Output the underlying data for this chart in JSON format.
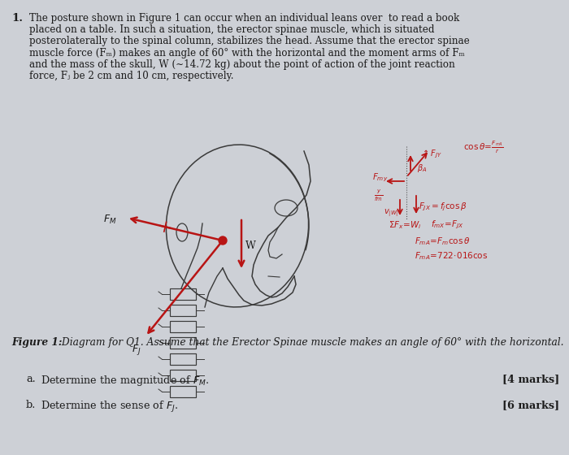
{
  "bg_color": "#cdd0d6",
  "page_color": "#d4d8de",
  "text_color": "#1c1c1c",
  "red_color": "#b81414",
  "dark_line": "#3a3a3a",
  "para_lines": [
    "The posture shown in Figure 1 can occur when an individual leans over  to read a book",
    "placed on a table. In such a situation, the erector spinae muscle, which is situated",
    "posterolaterally to the spinal column, stabilizes the head. Assume that the erector spinae",
    "muscle force (Fₘ) makes an angle of 60° with the horizontal and the moment arms of Fₘ",
    "and the mass of the skull, W (∼14.72 kg) about the point of action of the joint reaction",
    "force, Fⱼ be 2 cm and 10 cm, respectively."
  ],
  "figure_caption_bold": "Figure 1:",
  "figure_caption_rest": " Diagram for Q1. Assume that the Erector Spinae muscle makes an angle of 60° with the horizontal.",
  "qa_label": "a.",
  "qa_text": "   Determine the magnitude of Fₘ.",
  "qa_marks": "[4 marks]",
  "qb_label": "b.",
  "qb_text": "   Determine the sense of Fⱼ.",
  "qb_marks": "[6 marks]"
}
